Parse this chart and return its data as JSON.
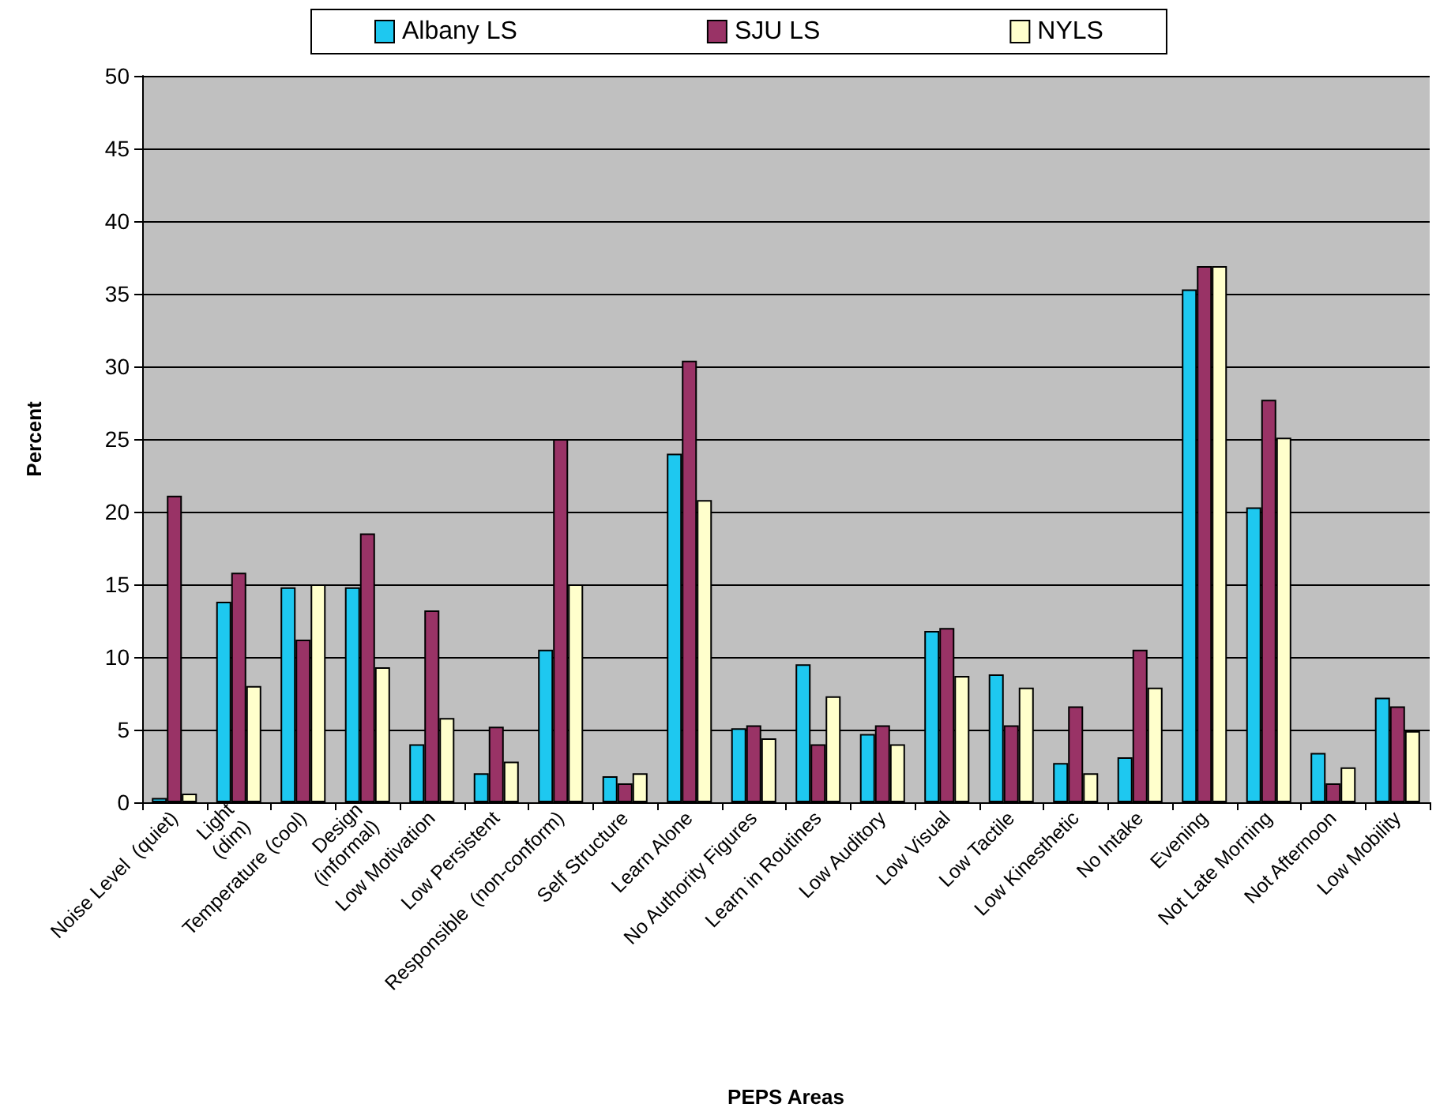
{
  "chart_data": {
    "type": "bar",
    "xlabel": "PEPS Areas",
    "ylabel": "Percent",
    "categories": [
      "Noise Level  (quiet)",
      "Light\n(dim)",
      "Temperature (cool)",
      "Design\n(informal)",
      "Low Motivation",
      "Low Persistent",
      "Responsible  (non-conform)",
      "Self Structure",
      "Learn Alone",
      "No Authority Figures",
      "Learn in Routines",
      "Low Auditory",
      "Low Visual",
      "Low Tactile",
      "Low Kinesthetic",
      "No Intake",
      "Evening",
      "Not Late Morning",
      "Not Afternoon",
      "Low Mobility"
    ],
    "series": [
      {
        "name": "Albany LS",
        "color": "#1ec8f0",
        "values": [
          0.3,
          13.8,
          14.8,
          14.8,
          4,
          2,
          10.5,
          1.8,
          24,
          5.1,
          9.5,
          4.7,
          11.8,
          8.8,
          2.7,
          3.1,
          35.3,
          20.3,
          3.4,
          7.2
        ]
      },
      {
        "name": "SJU LS",
        "color": "#993366",
        "values": [
          21.1,
          15.8,
          11.2,
          18.5,
          13.2,
          5.2,
          25,
          1.3,
          30.4,
          5.3,
          4,
          5.3,
          12,
          5.3,
          6.6,
          10.5,
          36.9,
          27.7,
          1.3,
          6.6
        ]
      },
      {
        "name": "NYLS",
        "color": "#ffffcc",
        "values": [
          0.6,
          8,
          15,
          9.3,
          5.8,
          2.8,
          15,
          2,
          20.8,
          4.4,
          7.3,
          4,
          8.7,
          7.9,
          2,
          7.9,
          36.9,
          25.1,
          2.4,
          4.9
        ]
      }
    ],
    "ylim": [
      0,
      50
    ],
    "yticks": [
      0,
      5,
      10,
      15,
      20,
      25,
      30,
      35,
      40,
      45,
      50
    ],
    "grid": "y",
    "legend": "top"
  }
}
